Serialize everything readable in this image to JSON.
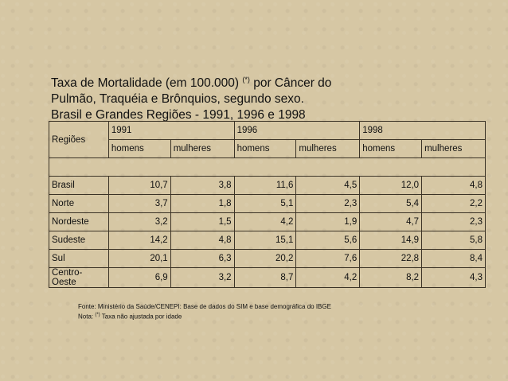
{
  "title": {
    "line1_pre": "Taxa de Mortalidade (em 100.000) ",
    "line1_mark": "(*)",
    "line1_post": " por Câncer do",
    "line2": "Pulmão, Traquéia e Brônquios, segundo sexo.",
    "line3": "Brasil e Grandes Regiões - 1991, 1996 e 1998"
  },
  "table": {
    "region_header": "Regiões",
    "years": [
      "1991",
      "1996",
      "1998"
    ],
    "sex_labels": [
      "homens",
      "mulheres",
      "homens",
      "mulheres",
      "homens",
      "mulheres"
    ],
    "rows": [
      {
        "region": "Brasil",
        "values": [
          "10,7",
          "3,8",
          "11,6",
          "4,5",
          "12,0",
          "4,8"
        ]
      },
      {
        "region": "Norte",
        "values": [
          "3,7",
          "1,8",
          "5,1",
          "2,3",
          "5,4",
          "2,2"
        ]
      },
      {
        "region": "Nordeste",
        "values": [
          "3,2",
          "1,5",
          "4,2",
          "1,9",
          "4,7",
          "2,3"
        ]
      },
      {
        "region": "Sudeste",
        "values": [
          "14,2",
          "4,8",
          "15,1",
          "5,6",
          "14,9",
          "5,8"
        ]
      },
      {
        "region": "Sul",
        "values": [
          "20,1",
          "6,3",
          "20,2",
          "7,6",
          "22,8",
          "8,4"
        ]
      },
      {
        "region": "Centro-Oeste",
        "values": [
          "6,9",
          "3,2",
          "8,7",
          "4,2",
          "8,2",
          "4,3"
        ]
      }
    ]
  },
  "notes": {
    "source": "Fonte: Ministério da Saúde/CENEPI: Base de dados do SIM e base demográfica do IBGE",
    "note_pre": "Nota: ",
    "note_mark": "(*)",
    "note_post": " Taxa não ajustada por idade"
  },
  "colors": {
    "background": "#d6c7a4",
    "border": "#3b3326",
    "text": "#111111"
  }
}
